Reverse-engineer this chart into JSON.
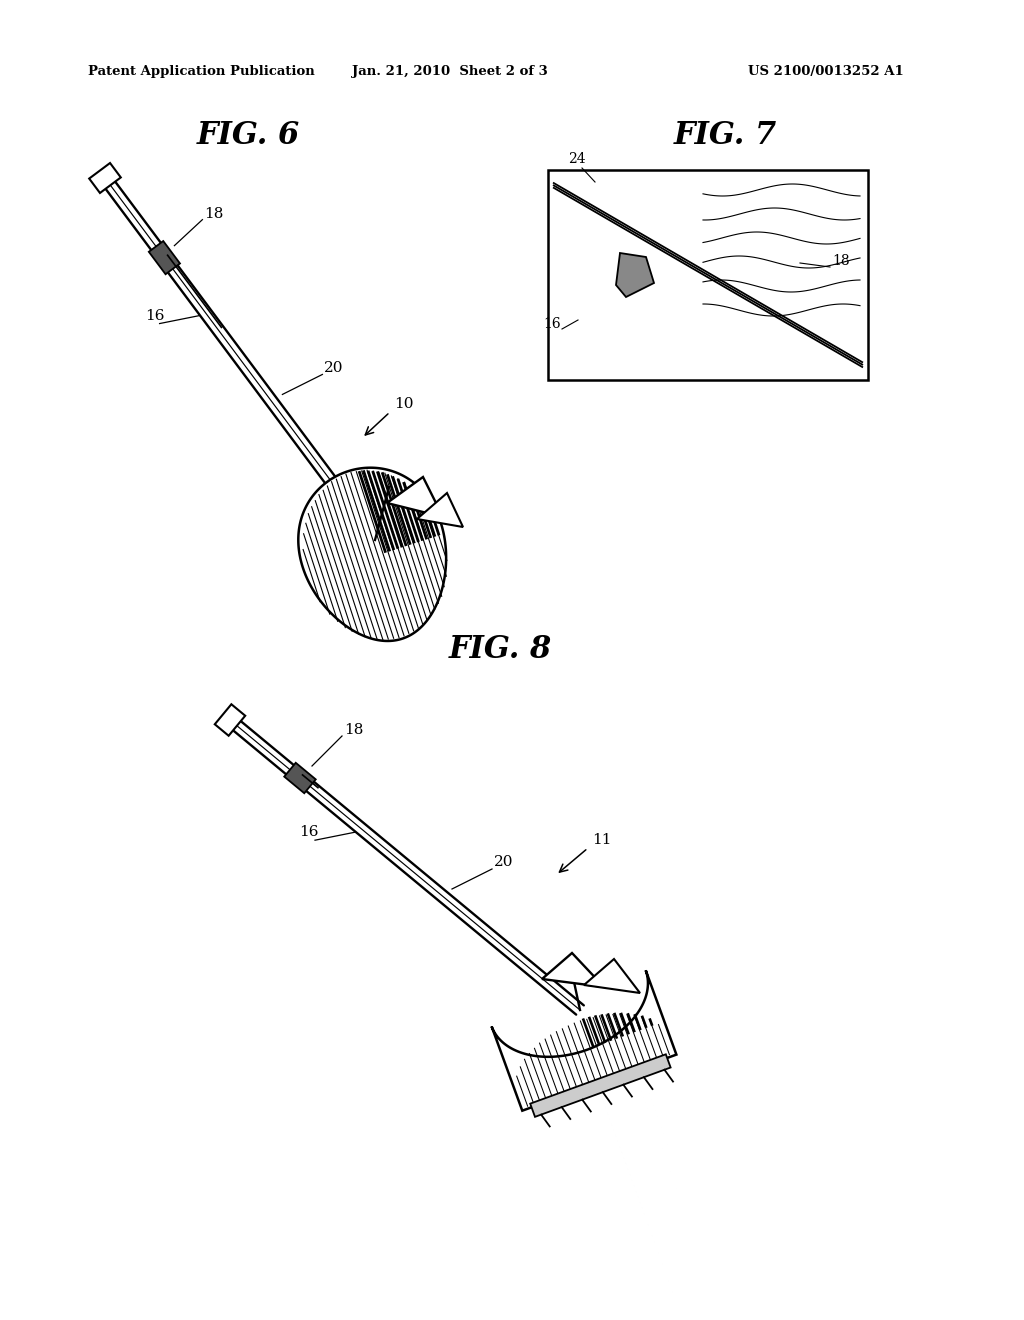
{
  "bg": "#ffffff",
  "header_left": "Patent Application Publication",
  "header_center": "Jan. 21, 2010  Sheet 2 of 3",
  "header_right": "US 2100/0013252 A1",
  "fig6_title": "FIG. 6",
  "fig7_title": "FIG. 7",
  "fig8_title": "FIG. 8",
  "line_color": "#000000"
}
